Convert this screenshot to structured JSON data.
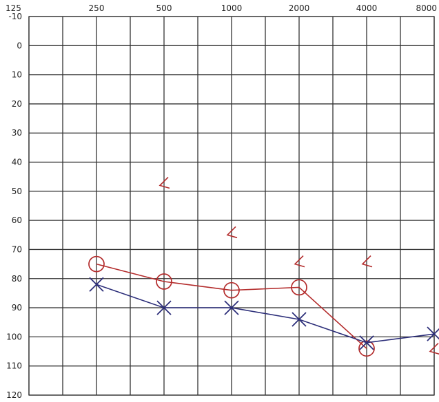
{
  "chart_data": {
    "type": "line",
    "x_ticks": [
      "125",
      "250",
      "500",
      "1000",
      "2000",
      "4000",
      "8000"
    ],
    "y_ticks": [
      "-10",
      "0",
      "10",
      "20",
      "30",
      "40",
      "50",
      "60",
      "70",
      "80",
      "90",
      "100",
      "110",
      "120"
    ],
    "ylim": [
      -10,
      120
    ],
    "y_inverted": true,
    "grid": true,
    "series": [
      {
        "marker": "circle",
        "color": "#b32b2b",
        "points": [
          {
            "x": 250,
            "y": 75
          },
          {
            "x": 500,
            "y": 81
          },
          {
            "x": 1000,
            "y": 84
          },
          {
            "x": 2000,
            "y": 83
          },
          {
            "x": 4000,
            "y": 104
          }
        ]
      },
      {
        "marker": "x",
        "color": "#2d2f7a",
        "points": [
          {
            "x": 250,
            "y": 82
          },
          {
            "x": 500,
            "y": 90
          },
          {
            "x": 1000,
            "y": 90
          },
          {
            "x": 2000,
            "y": 94
          },
          {
            "x": 4000,
            "y": 102
          },
          {
            "x": 8000,
            "y": 99
          }
        ]
      },
      {
        "marker": "bracket-left",
        "color": "#b32b2b",
        "connected": false,
        "points": [
          {
            "x": 500,
            "y": 48
          },
          {
            "x": 1000,
            "y": 65
          },
          {
            "x": 2000,
            "y": 75
          },
          {
            "x": 4000,
            "y": 75
          },
          {
            "x": 8000,
            "y": 105
          }
        ]
      }
    ]
  }
}
